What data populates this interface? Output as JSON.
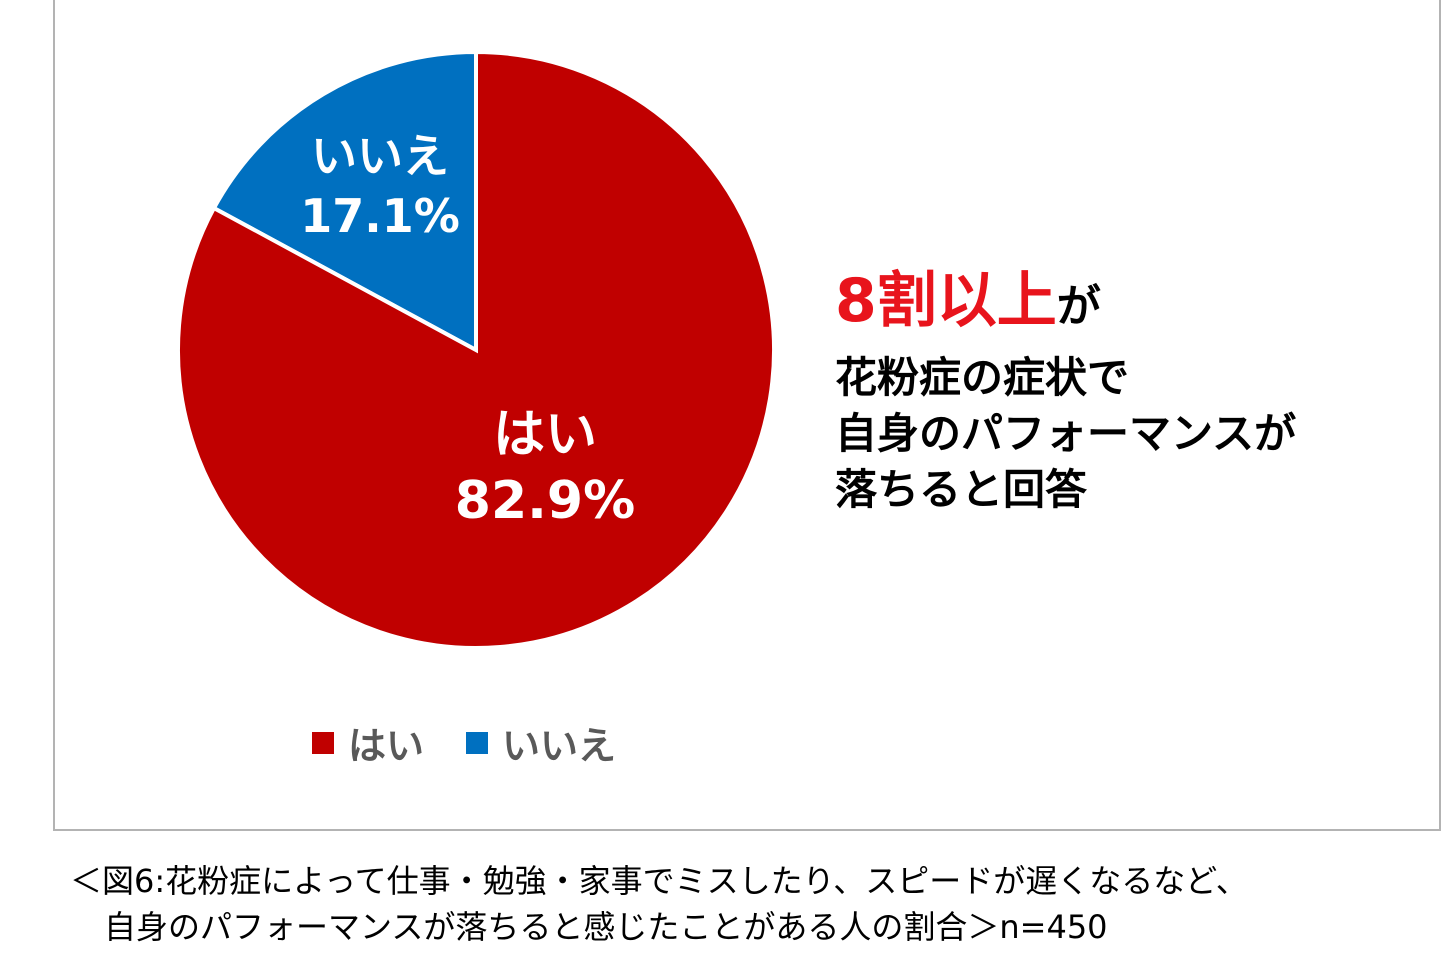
{
  "chart_data": {
    "type": "pie",
    "slices": [
      {
        "label": "いいえ",
        "value": 17.1,
        "value_label": "17.1%",
        "color": "#0070c0"
      },
      {
        "label": "はい",
        "value": 82.9,
        "value_label": "82.9%",
        "color": "#c00000"
      }
    ],
    "legend": {
      "placement": "bottom",
      "entries": [
        {
          "label": "はい",
          "color": "#c00000"
        },
        {
          "label": "いいえ",
          "color": "#0070c0"
        }
      ]
    }
  },
  "headline": {
    "highlight": "8割以上",
    "rest": "が",
    "line2": "花粉症の症状で",
    "line3": "自身のパフォーマンスが",
    "line4": "落ちると回答",
    "highlight_color": "#e8141c"
  },
  "caption": {
    "line1": "＜図6:花粉症によって仕事・勉強・家事でミスしたり、スピードが遅くなるなど、",
    "line2": "自身のパフォーマンスが落ちると感じたことがある人の割合＞n=450"
  }
}
